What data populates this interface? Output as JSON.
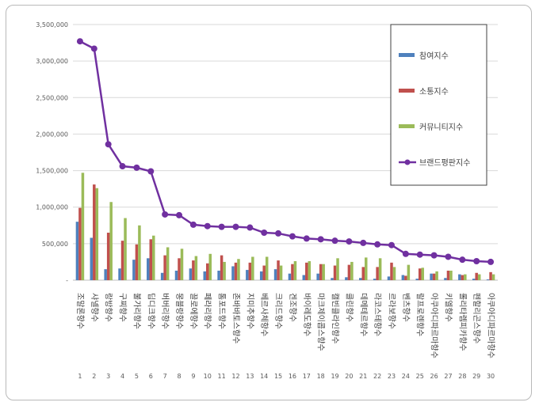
{
  "chart_data": {
    "type": "bar",
    "title": "",
    "xlabel": "",
    "ylabel": "",
    "ylim": [
      0,
      3500000
    ],
    "yticks": [
      "-",
      "500,000",
      "1,000,000",
      "1,500,000",
      "2,000,000",
      "2,500,000",
      "3,000,000",
      "3,500,000"
    ],
    "ytick_values": [
      0,
      500000,
      1000000,
      1500000,
      2000000,
      2500000,
      3000000,
      3500000
    ],
    "grid": true,
    "legend_position": "right",
    "numbers": [
      "1",
      "2",
      "3",
      "4",
      "5",
      "6",
      "7",
      "8",
      "9",
      "10",
      "11",
      "12",
      "13",
      "14",
      "15",
      "16",
      "17",
      "18",
      "19",
      "20",
      "21",
      "22",
      "23",
      "24",
      "25",
      "26",
      "27",
      "28",
      "29",
      "30"
    ],
    "categories": [
      "조말론향수",
      "샤넬향수",
      "랑방향수",
      "구찌향수",
      "불가리향수",
      "딥디크향수",
      "버버리향수",
      "몽블랑향수",
      "끌로에향수",
      "페라리향수",
      "톰포드향수",
      "존바바토스향수",
      "지미추향수",
      "베르사체향수",
      "크리드향수",
      "겐조향수",
      "바이레도향수",
      "마크제이콥스향수",
      "캘빈클라인향수",
      "클린향수",
      "데메테르향수",
      "라코스테향수",
      "르라보향수",
      "벤츠향수",
      "랄프로렌향수",
      "아쿠아디파르마향수",
      "키엘향수",
      "롤리타렘피카향수",
      "펜할리곤스향수",
      "아쿠아디파르마향수"
    ],
    "series": [
      {
        "name": "참여지수",
        "type": "bar",
        "color": "#4f81bd",
        "values": [
          800000,
          580000,
          150000,
          160000,
          280000,
          300000,
          100000,
          130000,
          160000,
          120000,
          130000,
          190000,
          140000,
          120000,
          150000,
          90000,
          70000,
          90000,
          30000,
          40000,
          30000,
          20000,
          50000,
          70000,
          20000,
          90000,
          30000,
          80000,
          20000,
          10000
        ]
      },
      {
        "name": "소통지수",
        "type": "bar",
        "color": "#c0504d",
        "values": [
          990000,
          1310000,
          650000,
          540000,
          490000,
          560000,
          340000,
          300000,
          270000,
          230000,
          340000,
          240000,
          240000,
          200000,
          270000,
          220000,
          240000,
          220000,
          200000,
          210000,
          180000,
          180000,
          240000,
          60000,
          160000,
          90000,
          130000,
          70000,
          100000,
          110000
        ]
      },
      {
        "name": "커뮤니티지수",
        "type": "bar",
        "color": "#9bbb59",
        "values": [
          1470000,
          1260000,
          1070000,
          850000,
          750000,
          610000,
          450000,
          430000,
          330000,
          360000,
          250000,
          290000,
          320000,
          320000,
          200000,
          260000,
          260000,
          220000,
          300000,
          250000,
          310000,
          300000,
          180000,
          210000,
          170000,
          120000,
          130000,
          80000,
          80000,
          80000
        ]
      },
      {
        "name": "브랜드평판지수",
        "type": "line",
        "color": "#7030a0",
        "values": [
          3270000,
          3170000,
          1860000,
          1560000,
          1540000,
          1490000,
          900000,
          890000,
          760000,
          740000,
          730000,
          730000,
          720000,
          650000,
          640000,
          600000,
          570000,
          560000,
          540000,
          530000,
          510000,
          490000,
          480000,
          360000,
          350000,
          340000,
          320000,
          280000,
          260000,
          250000
        ]
      }
    ]
  }
}
